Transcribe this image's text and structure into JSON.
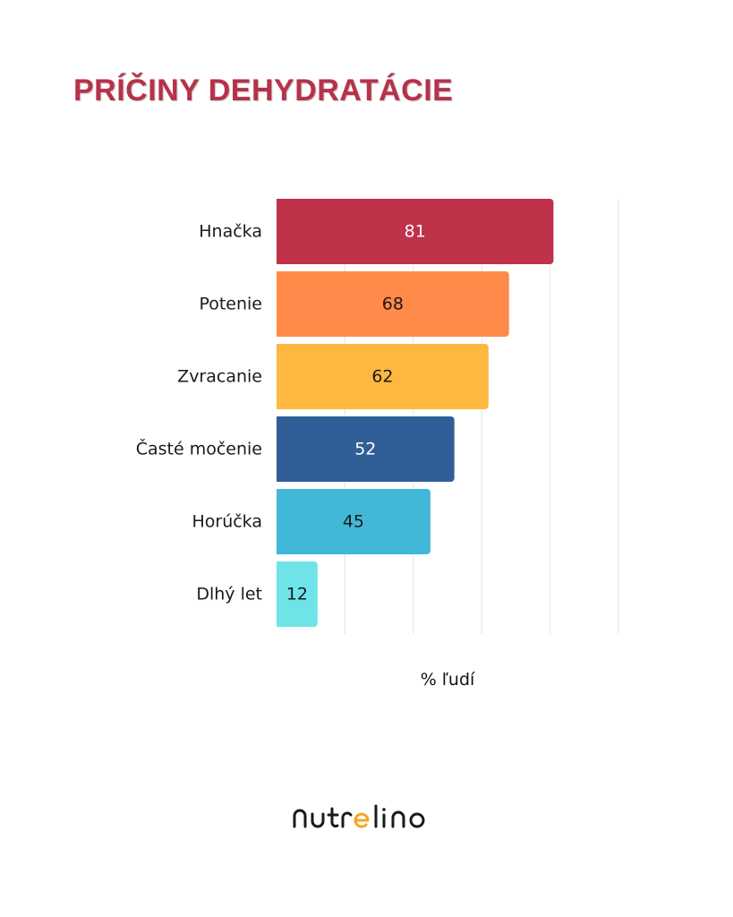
{
  "title": "PRÍČINY DEHYDRATÁCIE",
  "brand": {
    "name": "nutrelino",
    "color": "#1a1a1a",
    "accent": "#f5a623"
  },
  "chart_data": {
    "type": "bar",
    "orientation": "horizontal",
    "categories": [
      "Hnačka",
      "Potenie",
      "Zvracanie",
      "Časté močenie",
      "Horúčka",
      "Dlhý let"
    ],
    "values": [
      81,
      68,
      62,
      52,
      45,
      12
    ],
    "colors": [
      "#c0314a",
      "#ff8a4a",
      "#ffb83f",
      "#2f5f96",
      "#42b8d8",
      "#6ee4e8"
    ],
    "value_label_colors": [
      "#ffffff",
      "#1a1a1a",
      "#1a1a1a",
      "#ffffff",
      "#1a1a1a",
      "#1a1a1a"
    ],
    "title": "PRÍČINY DEHYDRATÁCIE",
    "xlabel": "% ľudí",
    "ylabel": "",
    "xlim": [
      0,
      100
    ],
    "grid": true
  }
}
